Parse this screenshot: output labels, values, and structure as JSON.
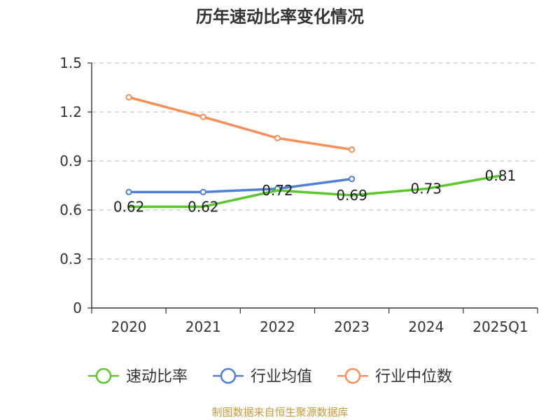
{
  "chart_data": {
    "type": "line",
    "title": "历年速动比率变化情况",
    "categories": [
      "2020",
      "2021",
      "2022",
      "2023",
      "2024",
      "2025Q1"
    ],
    "ylim": [
      0,
      1.5
    ],
    "yticks": [
      "0",
      "0.3",
      "0.6",
      "0.9",
      "1.2",
      "1.5"
    ],
    "ytick_values": [
      0,
      0.3,
      0.6,
      0.9,
      1.2,
      1.5
    ],
    "grid": true,
    "legend_position": "bottom",
    "series": [
      {
        "name": "速动比率",
        "color": "#5cc72b",
        "values": [
          0.62,
          0.62,
          0.72,
          0.69,
          0.73,
          0.81
        ],
        "labels": [
          "0.62",
          "0.62",
          "0.72",
          "0.69",
          "0.73",
          "0.81"
        ]
      },
      {
        "name": "行业均值",
        "color": "#4f7fd6",
        "values": [
          0.71,
          0.71,
          0.73,
          0.79,
          null,
          null
        ]
      },
      {
        "name": "行业中位数",
        "color": "#f5905a",
        "values": [
          1.29,
          1.17,
          1.04,
          0.97,
          null,
          null
        ]
      }
    ]
  },
  "source": "制图数据来自恒生聚源数据库"
}
